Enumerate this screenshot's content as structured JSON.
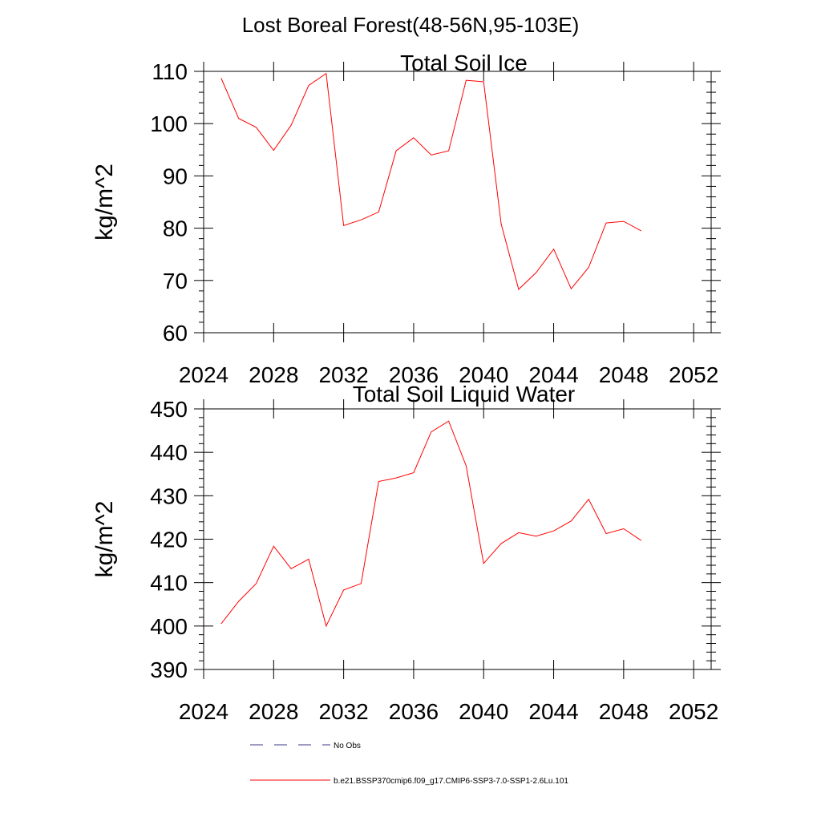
{
  "figure_title": "Lost Boreal Forest(48-56N,95-103E)",
  "chart_data": [
    {
      "type": "line",
      "title": "Total Soil Ice",
      "xlabel": "",
      "ylabel": "kg/m^2",
      "xlim": [
        2024,
        2053
      ],
      "ylim": [
        60,
        110
      ],
      "x_ticks": [
        2024,
        2028,
        2032,
        2036,
        2040,
        2044,
        2048,
        2052
      ],
      "y_ticks": [
        60,
        70,
        80,
        90,
        100,
        110
      ],
      "series": [
        {
          "color": "#ff0000",
          "x": [
            2025,
            2026,
            2027,
            2028,
            2029,
            2030,
            2031,
            2032,
            2033,
            2034,
            2035,
            2036,
            2037,
            2038,
            2039,
            2040,
            2041,
            2042,
            2043,
            2044,
            2045,
            2046,
            2047,
            2048,
            2049
          ],
          "y": [
            108.7,
            101.0,
            99.3,
            94.9,
            99.7,
            107.3,
            109.6,
            80.5,
            81.6,
            83.1,
            94.8,
            97.3,
            94.0,
            94.8,
            108.3,
            108.0,
            80.8,
            68.3,
            71.5,
            76.0,
            68.4,
            72.5,
            81.0,
            81.3,
            79.5
          ]
        }
      ]
    },
    {
      "type": "line",
      "title": "Total Soil Liquid Water",
      "xlabel": "",
      "ylabel": "kg/m^2",
      "xlim": [
        2024,
        2053
      ],
      "ylim": [
        390,
        450
      ],
      "x_ticks": [
        2024,
        2028,
        2032,
        2036,
        2040,
        2044,
        2048,
        2052
      ],
      "y_ticks": [
        390,
        400,
        410,
        420,
        430,
        440,
        450
      ],
      "series": [
        {
          "color": "#ff0000",
          "x": [
            2025,
            2026,
            2027,
            2028,
            2029,
            2030,
            2031,
            2032,
            2033,
            2034,
            2035,
            2036,
            2037,
            2038,
            2039,
            2040,
            2041,
            2042,
            2043,
            2044,
            2045,
            2046,
            2047,
            2048,
            2049
          ],
          "y": [
            400.5,
            405.7,
            409.8,
            418.4,
            413.2,
            415.4,
            400.0,
            408.3,
            409.8,
            433.3,
            434.1,
            435.3,
            444.7,
            447.2,
            436.9,
            414.4,
            419.0,
            421.5,
            420.7,
            421.9,
            424.2,
            429.2,
            421.3,
            422.4,
            419.7
          ]
        }
      ]
    }
  ],
  "legend": {
    "items": [
      {
        "label": "No Obs",
        "color": "#3a3a8a",
        "dash": true
      },
      {
        "label": "b.e21.BSSP370cmip6.f09_g17.CMIP6-SSP3-7.0-SSP1-2.6Lu.101",
        "color": "#ff0000",
        "dash": false
      }
    ]
  }
}
